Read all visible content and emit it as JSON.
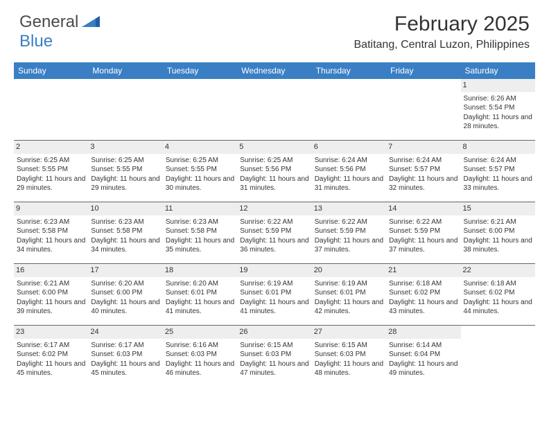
{
  "brand": {
    "text1": "General",
    "text2": "Blue"
  },
  "title": "February 2025",
  "location": "Batitang, Central Luzon, Philippines",
  "colors": {
    "header_bg": "#3a7fc4",
    "header_text": "#ffffff",
    "daynum_bg": "#eeeeee",
    "body_text": "#333333",
    "rule": "#666666"
  },
  "day_labels": [
    "Sunday",
    "Monday",
    "Tuesday",
    "Wednesday",
    "Thursday",
    "Friday",
    "Saturday"
  ],
  "weeks": [
    [
      {
        "empty": true
      },
      {
        "empty": true
      },
      {
        "empty": true
      },
      {
        "empty": true
      },
      {
        "empty": true
      },
      {
        "empty": true
      },
      {
        "day": "1",
        "sunrise": "6:26 AM",
        "sunset": "5:54 PM",
        "daylight": "11 hours and 28 minutes."
      }
    ],
    [
      {
        "day": "2",
        "sunrise": "6:25 AM",
        "sunset": "5:55 PM",
        "daylight": "11 hours and 29 minutes."
      },
      {
        "day": "3",
        "sunrise": "6:25 AM",
        "sunset": "5:55 PM",
        "daylight": "11 hours and 29 minutes."
      },
      {
        "day": "4",
        "sunrise": "6:25 AM",
        "sunset": "5:55 PM",
        "daylight": "11 hours and 30 minutes."
      },
      {
        "day": "5",
        "sunrise": "6:25 AM",
        "sunset": "5:56 PM",
        "daylight": "11 hours and 31 minutes."
      },
      {
        "day": "6",
        "sunrise": "6:24 AM",
        "sunset": "5:56 PM",
        "daylight": "11 hours and 31 minutes."
      },
      {
        "day": "7",
        "sunrise": "6:24 AM",
        "sunset": "5:57 PM",
        "daylight": "11 hours and 32 minutes."
      },
      {
        "day": "8",
        "sunrise": "6:24 AM",
        "sunset": "5:57 PM",
        "daylight": "11 hours and 33 minutes."
      }
    ],
    [
      {
        "day": "9",
        "sunrise": "6:23 AM",
        "sunset": "5:58 PM",
        "daylight": "11 hours and 34 minutes."
      },
      {
        "day": "10",
        "sunrise": "6:23 AM",
        "sunset": "5:58 PM",
        "daylight": "11 hours and 34 minutes."
      },
      {
        "day": "11",
        "sunrise": "6:23 AM",
        "sunset": "5:58 PM",
        "daylight": "11 hours and 35 minutes."
      },
      {
        "day": "12",
        "sunrise": "6:22 AM",
        "sunset": "5:59 PM",
        "daylight": "11 hours and 36 minutes."
      },
      {
        "day": "13",
        "sunrise": "6:22 AM",
        "sunset": "5:59 PM",
        "daylight": "11 hours and 37 minutes."
      },
      {
        "day": "14",
        "sunrise": "6:22 AM",
        "sunset": "5:59 PM",
        "daylight": "11 hours and 37 minutes."
      },
      {
        "day": "15",
        "sunrise": "6:21 AM",
        "sunset": "6:00 PM",
        "daylight": "11 hours and 38 minutes."
      }
    ],
    [
      {
        "day": "16",
        "sunrise": "6:21 AM",
        "sunset": "6:00 PM",
        "daylight": "11 hours and 39 minutes."
      },
      {
        "day": "17",
        "sunrise": "6:20 AM",
        "sunset": "6:00 PM",
        "daylight": "11 hours and 40 minutes."
      },
      {
        "day": "18",
        "sunrise": "6:20 AM",
        "sunset": "6:01 PM",
        "daylight": "11 hours and 41 minutes."
      },
      {
        "day": "19",
        "sunrise": "6:19 AM",
        "sunset": "6:01 PM",
        "daylight": "11 hours and 41 minutes."
      },
      {
        "day": "20",
        "sunrise": "6:19 AM",
        "sunset": "6:01 PM",
        "daylight": "11 hours and 42 minutes."
      },
      {
        "day": "21",
        "sunrise": "6:18 AM",
        "sunset": "6:02 PM",
        "daylight": "11 hours and 43 minutes."
      },
      {
        "day": "22",
        "sunrise": "6:18 AM",
        "sunset": "6:02 PM",
        "daylight": "11 hours and 44 minutes."
      }
    ],
    [
      {
        "day": "23",
        "sunrise": "6:17 AM",
        "sunset": "6:02 PM",
        "daylight": "11 hours and 45 minutes."
      },
      {
        "day": "24",
        "sunrise": "6:17 AM",
        "sunset": "6:03 PM",
        "daylight": "11 hours and 45 minutes."
      },
      {
        "day": "25",
        "sunrise": "6:16 AM",
        "sunset": "6:03 PM",
        "daylight": "11 hours and 46 minutes."
      },
      {
        "day": "26",
        "sunrise": "6:15 AM",
        "sunset": "6:03 PM",
        "daylight": "11 hours and 47 minutes."
      },
      {
        "day": "27",
        "sunrise": "6:15 AM",
        "sunset": "6:03 PM",
        "daylight": "11 hours and 48 minutes."
      },
      {
        "day": "28",
        "sunrise": "6:14 AM",
        "sunset": "6:04 PM",
        "daylight": "11 hours and 49 minutes."
      },
      {
        "empty": true
      }
    ]
  ],
  "labels": {
    "sunrise": "Sunrise:",
    "sunset": "Sunset:",
    "daylight": "Daylight:"
  }
}
